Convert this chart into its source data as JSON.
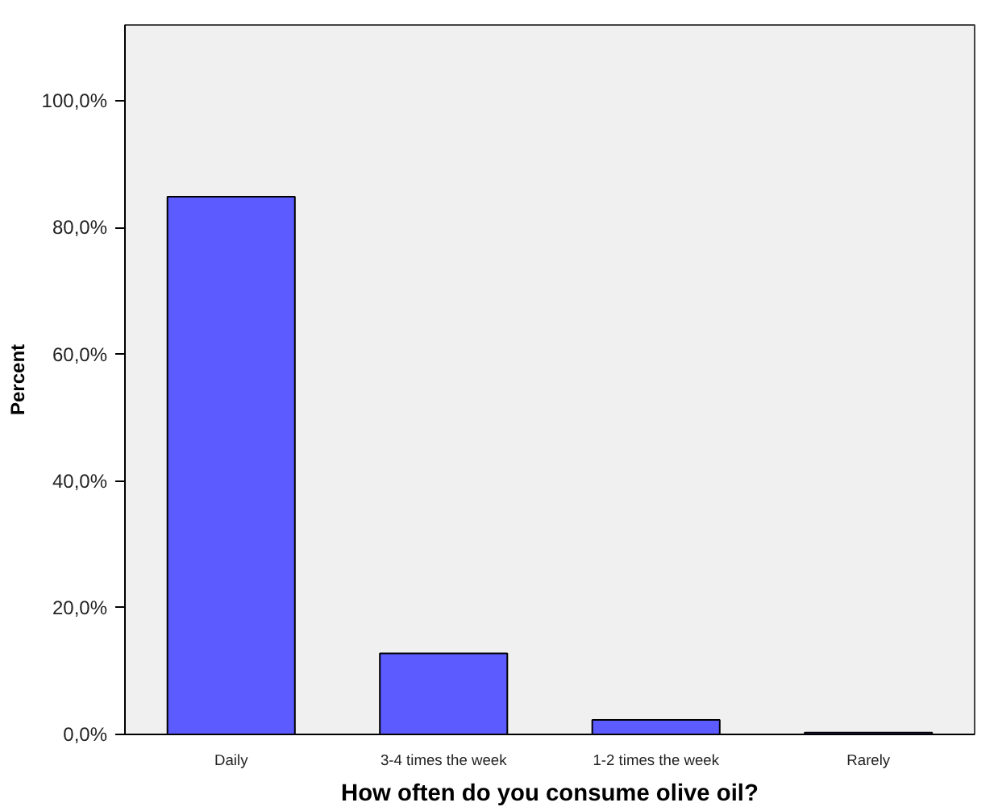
{
  "chart_data": {
    "type": "bar",
    "xlabel": "How often do you consume olive oil?",
    "ylabel": "Percent",
    "categories": [
      "Daily",
      "3-4 times the week",
      "1-2 times the week",
      "Rarely"
    ],
    "values": [
      84.9,
      12.8,
      2.3,
      0.3
    ],
    "color": "#5b5bff",
    "ylim": [
      0,
      112
    ],
    "yticks": [
      {
        "value": 0,
        "label": "0,0%"
      },
      {
        "value": 20,
        "label": "20,0%"
      },
      {
        "value": 40,
        "label": "40,0%"
      },
      {
        "value": 60,
        "label": "60,0%"
      },
      {
        "value": 80,
        "label": "80,0%"
      },
      {
        "value": 100,
        "label": "100,0%"
      }
    ],
    "grid": false
  }
}
